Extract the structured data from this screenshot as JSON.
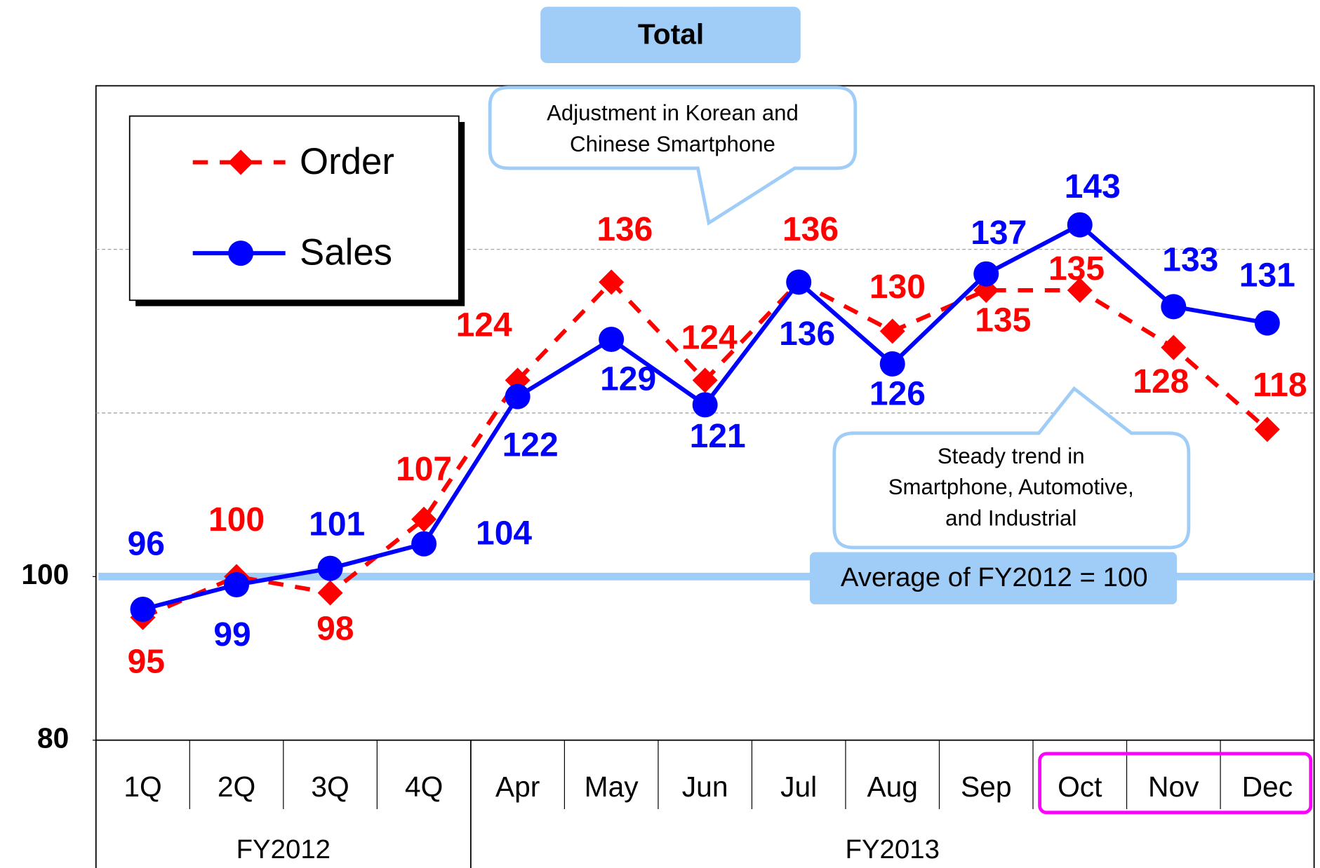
{
  "chart_data": {
    "type": "line",
    "title": "Total",
    "categories": [
      "1Q",
      "2Q",
      "3Q",
      "4Q",
      "Apr",
      "May",
      "Jun",
      "Jul",
      "Aug",
      "Sep",
      "Oct",
      "Nov",
      "Dec"
    ],
    "groups": [
      {
        "name": "FY2012",
        "span": 4
      },
      {
        "name": "FY2013",
        "span": 9
      }
    ],
    "series": [
      {
        "name": "Order",
        "color": "#ff0000",
        "dashed": true,
        "marker": "diamond",
        "values": [
          95,
          100,
          98,
          107,
          124,
          136,
          124,
          136,
          130,
          135,
          135,
          128,
          118
        ]
      },
      {
        "name": "Sales",
        "color": "#0000ff",
        "dashed": false,
        "marker": "circle",
        "values": [
          96,
          99,
          101,
          104,
          122,
          129,
          121,
          136,
          126,
          137,
          143,
          133,
          131
        ]
      }
    ],
    "ylim": [
      80,
      160
    ],
    "yticks": [
      80,
      100
    ],
    "gridlines": [
      120,
      140
    ],
    "reference_line": {
      "value": 100,
      "label": "Average of FY2012 = 100"
    },
    "annotations": [
      {
        "lines": [
          "Adjustment in Korean and",
          "Chinese Smartphone"
        ]
      },
      {
        "lines": [
          "Steady trend in",
          "Smartphone, Automotive,",
          "and Industrial"
        ]
      }
    ]
  }
}
